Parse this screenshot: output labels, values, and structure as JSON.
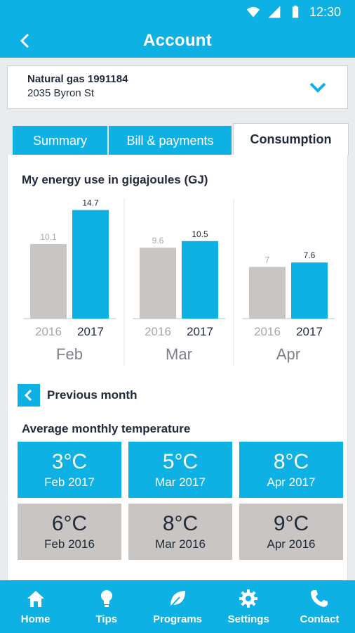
{
  "status_bar": {
    "time": "12:30"
  },
  "header": {
    "title": "Account"
  },
  "account": {
    "name": "Natural gas 1991184",
    "address": "2035 Byron St"
  },
  "tabs": [
    {
      "label": "Summary",
      "active": false
    },
    {
      "label": "Bill & payments",
      "active": false
    },
    {
      "label": "Consumption",
      "active": true
    }
  ],
  "energy_section": {
    "title": "My energy use in gigajoules (GJ)"
  },
  "chart_data": {
    "type": "bar",
    "title": "My energy use in gigajoules (GJ)",
    "categories": [
      "Feb",
      "Mar",
      "Apr"
    ],
    "series": [
      {
        "name": "2016",
        "values": [
          10.1,
          9.6,
          7
        ],
        "labels": [
          "10.1",
          "9.6",
          "7"
        ],
        "color": "#c8c5c2"
      },
      {
        "name": "2017",
        "values": [
          14.7,
          10.5,
          7.6
        ],
        "labels": [
          "14.7",
          "10.5",
          "7.6"
        ],
        "color": "#0eb1e3"
      }
    ],
    "grid": false,
    "legend": "none"
  },
  "previous_month": {
    "label": "Previous month"
  },
  "temperature_section": {
    "title": "Average monthly temperature",
    "current": [
      {
        "value": "3°C",
        "label": "Feb 2017"
      },
      {
        "value": "5°C",
        "label": "Mar 2017"
      },
      {
        "value": "8°C",
        "label": "Apr 2017"
      }
    ],
    "previous": [
      {
        "value": "6°C",
        "label": "Feb 2016"
      },
      {
        "value": "8°C",
        "label": "Mar 2016"
      },
      {
        "value": "9°C",
        "label": "Apr 2016"
      }
    ]
  },
  "bottom_nav": [
    {
      "label": "Home",
      "icon": "home-icon"
    },
    {
      "label": "Tips",
      "icon": "lightbulb-icon"
    },
    {
      "label": "Programs",
      "icon": "leaf-icon"
    },
    {
      "label": "Settings",
      "icon": "gear-icon"
    },
    {
      "label": "Contact",
      "icon": "phone-icon"
    }
  ],
  "colors": {
    "accent": "#0eb1e3",
    "previous_year": "#c8c5c2",
    "text": "#1f2a3a"
  }
}
